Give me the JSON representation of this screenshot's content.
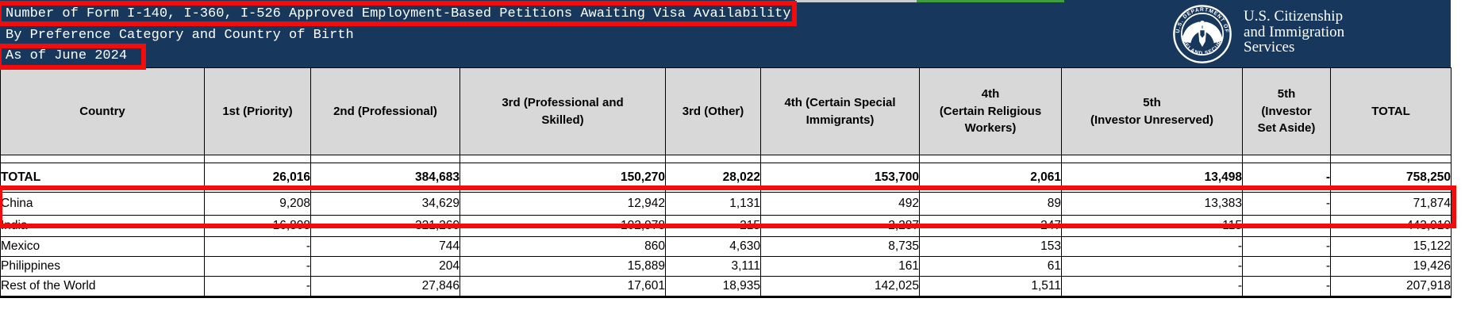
{
  "header": {
    "background_color": "#17375d",
    "title_line1": "Number of Form I-140, I-360, I-526 Approved Employment-Based Petitions Awaiting Visa Availability",
    "title_line2": "By Preference Category and Country of Birth",
    "title_line3": "As of June 2024",
    "logo": {
      "seal_top_text": "U.S. DEPARTMENT OF",
      "seal_bottom_text": "HOMELAND SECURITY",
      "wordmark_line1": "U.S. Citizenship",
      "wordmark_line2": "and Immigration",
      "wordmark_line3": "Services"
    }
  },
  "annotations": {
    "color": "#f40b0b",
    "boxes": [
      {
        "target": "title-line-1"
      },
      {
        "target": "as-of-date"
      },
      {
        "target": "china-row"
      }
    ]
  },
  "table": {
    "columns": [
      "Country",
      "1st (Priority)",
      "2nd (Professional)",
      "3rd (Professional and\nSkilled)",
      "3rd (Other)",
      "4th (Certain Special\nImmigrants)",
      "4th\n(Certain Religious\nWorkers)",
      "5th\n(Investor Unreserved)",
      "5th\n(Investor\nSet Aside)",
      "TOTAL"
    ],
    "rows": [
      {
        "country": "TOTAL",
        "bold": true,
        "values": [
          "26,016",
          "384,683",
          "150,270",
          "28,022",
          "153,700",
          "2,061",
          "13,498",
          "-",
          "758,250"
        ]
      },
      {
        "country": "China",
        "highlighted": true,
        "values": [
          "9,208",
          "34,629",
          "12,942",
          "1,131",
          "492",
          "89",
          "13,383",
          "-",
          "71,874"
        ]
      },
      {
        "country": "India",
        "values": [
          "16,808",
          "321,260",
          "102,978",
          "215",
          "2,287",
          "247",
          "115",
          "-",
          "443,910"
        ]
      },
      {
        "country": "Mexico",
        "values": [
          "-",
          "744",
          "860",
          "4,630",
          "8,735",
          "153",
          "-",
          "-",
          "15,122"
        ]
      },
      {
        "country": "Philippines",
        "values": [
          "-",
          "204",
          "15,889",
          "3,111",
          "161",
          "61",
          "-",
          "-",
          "19,426"
        ]
      },
      {
        "country": "Rest of the World",
        "values": [
          "-",
          "27,846",
          "17,601",
          "18,935",
          "142,025",
          "1,511",
          "-",
          "-",
          "207,918"
        ]
      }
    ]
  }
}
